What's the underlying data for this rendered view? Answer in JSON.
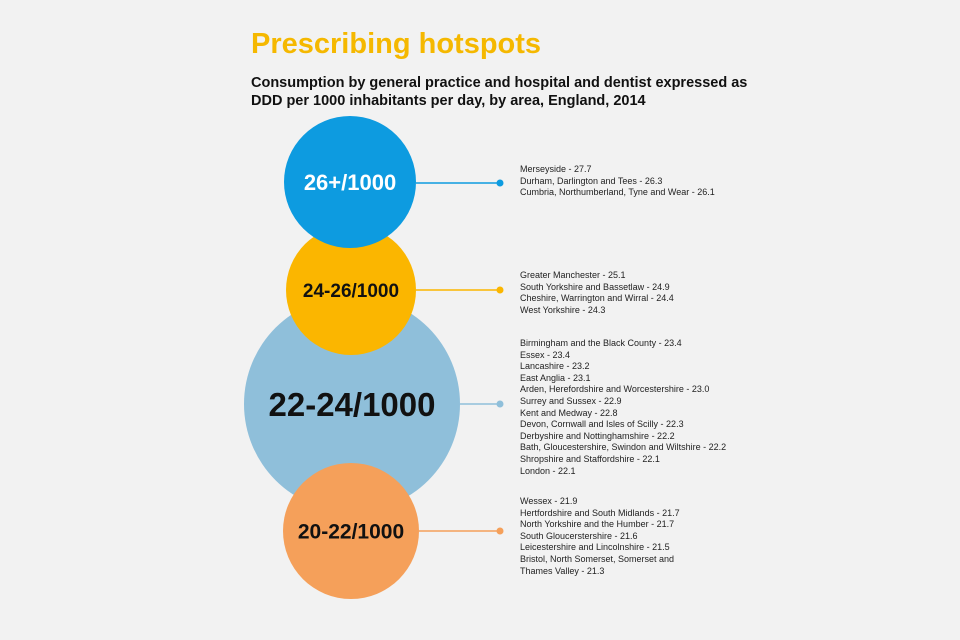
{
  "title": "Prescribing hotspots",
  "subtitle": "Consumption by general practice and hospital and dentist expressed as DDD per 1000 inhabitants per day, by area, England, 2014",
  "chart_data": {
    "type": "bubble-list",
    "title": "Prescribing hotspots",
    "subtitle": "Consumption by general practice and hospital and dentist expressed as DDD per 1000 inhabitants per day, by area, England, 2014",
    "groups": [
      {
        "label": "26+/1000",
        "color": "#0d9be0",
        "label_color": "#ffffff",
        "areas": [
          "Merseyside - 27.7",
          "Durham, Darlington and Tees - 26.3",
          "Cumbria, Northumberland, Tyne and Wear - 26.1"
        ]
      },
      {
        "label": "24-26/1000",
        "color": "#fbb600",
        "label_color": "#111111",
        "areas": [
          "Greater Manchester - 25.1",
          "South Yorkshire and Bassetlaw - 24.9",
          "Cheshire, Warrington and Wirral - 24.4",
          "West Yorkshire - 24.3"
        ]
      },
      {
        "label": "22-24/1000",
        "color": "#8fbfda",
        "label_color": "#111111",
        "areas": [
          "Birmingham and the Black County - 23.4",
          "Essex - 23.4",
          "Lancashire - 23.2",
          "East Anglia - 23.1",
          "Arden, Herefordshire and Worcestershire - 23.0",
          "Surrey and Sussex - 22.9",
          "Kent and Medway - 22.8",
          "Devon, Cornwall and Isles of Scilly - 22.3",
          "Derbyshire and Nottinghamshire - 22.2",
          "Bath, Gloucestershire, Swindon and Wiltshire - 22.2",
          "Shropshire and Staffordshire - 22.1",
          "London - 22.1"
        ]
      },
      {
        "label": "20-22/1000",
        "color": "#f5a05a",
        "label_color": "#111111",
        "areas": [
          "Wessex - 21.9",
          "Hertfordshire and South Midlands - 21.7",
          "North Yorkshire and the Humber - 21.7",
          "South Gloucerstershire - 21.6",
          "Leicestershire and Lincolnshire - 21.5",
          "Bristol, North Somerset, Somerset and",
          "Thames Valley - 21.3"
        ]
      }
    ]
  }
}
